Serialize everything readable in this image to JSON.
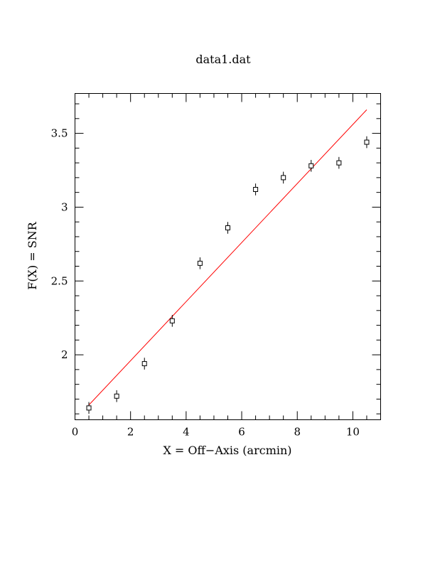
{
  "chart_data": {
    "type": "scatter",
    "title": "data1.dat",
    "xlabel": "X = Off−Axis (arcmin)",
    "ylabel": "F(X) = SNR",
    "xlim": [
      0,
      11
    ],
    "ylim": [
      1.56,
      3.77
    ],
    "xticks": [
      0,
      2,
      4,
      6,
      8,
      10
    ],
    "xtick_labels": [
      "0",
      "2",
      "4",
      "6",
      "8",
      "10"
    ],
    "yticks": [
      2,
      2.5,
      3,
      3.5
    ],
    "ytick_labels": [
      "2",
      "2.5",
      "3",
      "3.5"
    ],
    "grid": false,
    "series": [
      {
        "type": "scatter",
        "marker": "open-square",
        "color": "#000000",
        "x": [
          0.5,
          1.5,
          2.5,
          3.5,
          4.5,
          5.5,
          6.5,
          7.5,
          8.5,
          9.5,
          10.5
        ],
        "y": [
          1.64,
          1.72,
          1.94,
          2.23,
          2.62,
          2.86,
          3.12,
          3.2,
          3.28,
          3.3,
          3.44
        ],
        "yerr": [
          0.04,
          0.04,
          0.04,
          0.04,
          0.04,
          0.04,
          0.04,
          0.04,
          0.04,
          0.04,
          0.04
        ]
      },
      {
        "type": "line",
        "color": "#ff0000",
        "x": [
          0.5,
          10.5
        ],
        "y": [
          1.66,
          3.66
        ]
      }
    ]
  }
}
